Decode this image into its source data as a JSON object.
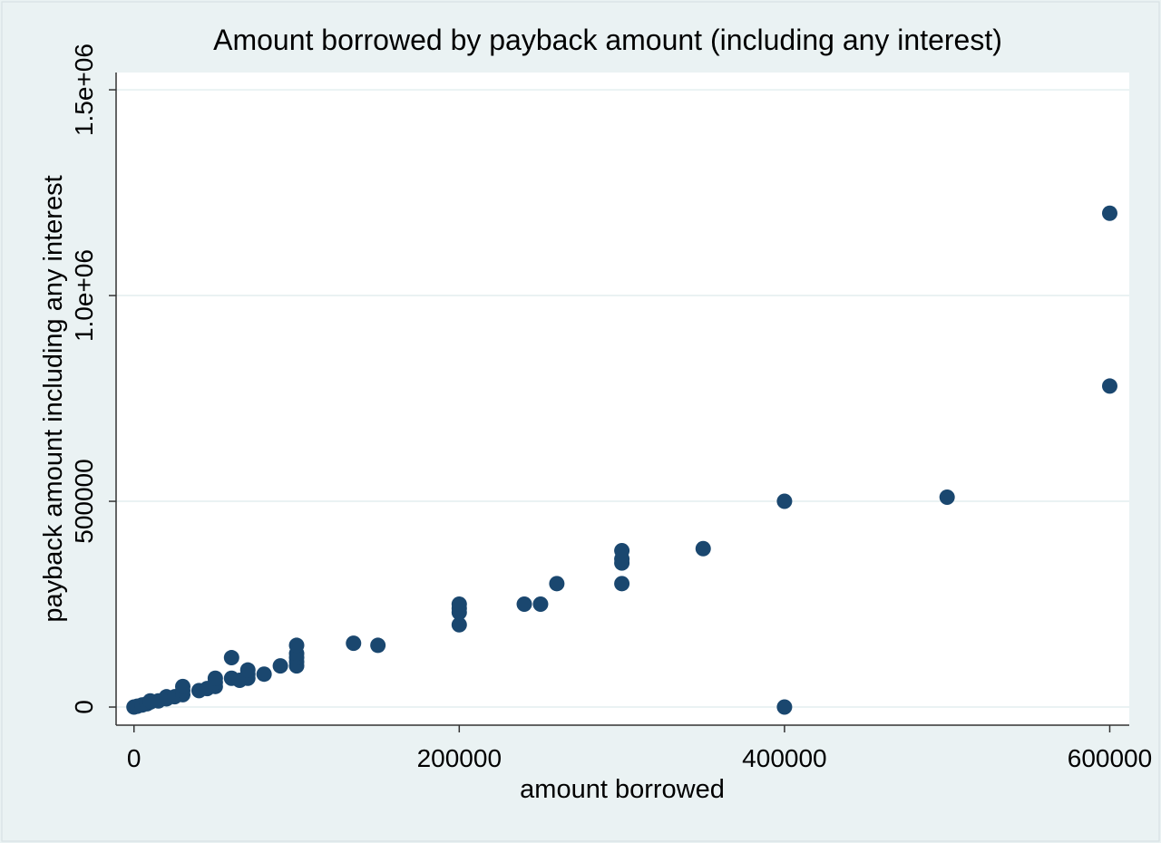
{
  "chart_data": {
    "type": "scatter",
    "title": "Amount borrowed by payback amount (including any interest)",
    "x_label": "amount borrowed",
    "y_label": "payback amount including any interest",
    "color": "#1a476f",
    "x": [
      0,
      2000,
      5000,
      8000,
      10000,
      10000,
      15000,
      20000,
      20000,
      25000,
      30000,
      30000,
      30000,
      40000,
      45000,
      50000,
      50000,
      50000,
      60000,
      60000,
      65000,
      70000,
      70000,
      70000,
      80000,
      90000,
      100000,
      100000,
      100000,
      100000,
      100000,
      135000,
      150000,
      200000,
      200000,
      200000,
      200000,
      240000,
      250000,
      260000,
      300000,
      300000,
      300000,
      300000,
      350000,
      400000,
      400000,
      500000,
      600000,
      600000
    ],
    "values": [
      0,
      2000,
      5000,
      8000,
      12000,
      15000,
      15000,
      20000,
      25000,
      25000,
      30000,
      40000,
      50000,
      40000,
      45000,
      50000,
      60000,
      70000,
      70000,
      120000,
      65000,
      70000,
      80000,
      90000,
      80000,
      100000,
      100000,
      110000,
      120000,
      130000,
      150000,
      155000,
      150000,
      200000,
      230000,
      240000,
      250000,
      250000,
      250000,
      300000,
      300000,
      350000,
      360000,
      380000,
      385000,
      0,
      500000,
      510000,
      780000,
      1200000
    ],
    "xlim": [
      -11000,
      612000
    ],
    "ylim": [
      -44000,
      1542000
    ],
    "xticks": [
      0,
      200000,
      400000,
      600000
    ],
    "yticks": [
      0,
      500000,
      {
        "value": 1000000,
        "label": "1.0e+06"
      },
      {
        "value": 1500000,
        "label": "1.5e+06"
      }
    ],
    "grid": true
  }
}
